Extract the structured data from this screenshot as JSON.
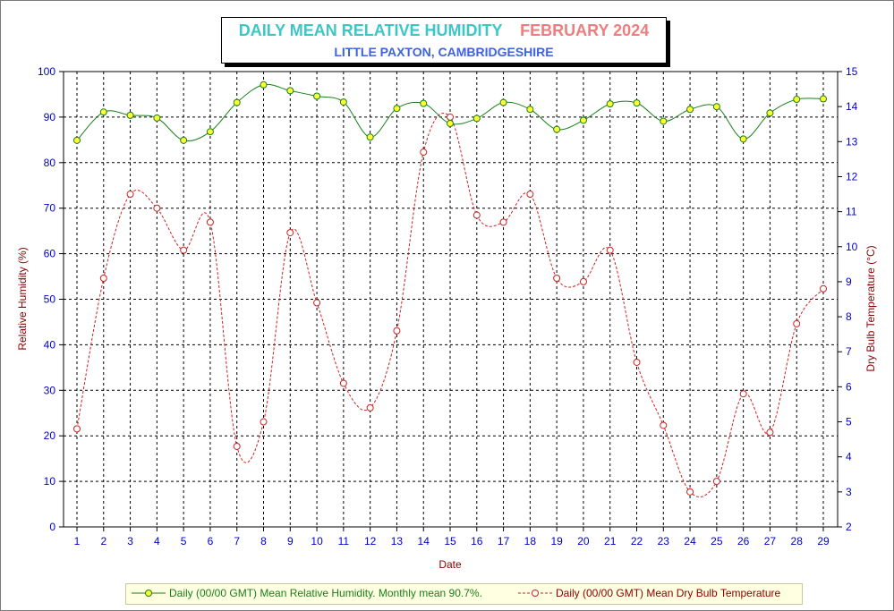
{
  "header": {
    "title_main": "DAILY MEAN RELATIVE HUMIDITY",
    "title_month": "FEBRUARY 2024",
    "subtitle": "LITTLE PAXTON, CAMBRIDGESHIRE"
  },
  "legend": {
    "humidity_label": "Daily (00/00 GMT) Mean Relative Humidity. Monthly mean 90.7%.",
    "temperature_label": "Daily (00/00 GMT) Mean Dry Bulb Temperature"
  },
  "colors": {
    "humidity_line": "#1a7f1a",
    "humidity_marker": "#ffff33",
    "temperature_line": "#cc2222",
    "axis_text": "#0000cc",
    "axis_title": "#8b0000"
  },
  "chart_data": {
    "type": "line",
    "xlabel": "Date",
    "ylabel": "Relative Humidity (%)",
    "y2label": "Dry Bulb Temperature (°C)",
    "x": [
      1,
      2,
      3,
      4,
      5,
      6,
      7,
      8,
      9,
      10,
      11,
      12,
      13,
      14,
      15,
      16,
      17,
      18,
      19,
      20,
      21,
      22,
      23,
      24,
      25,
      26,
      27,
      28,
      29
    ],
    "ylim": [
      0,
      100
    ],
    "y2lim": [
      2,
      15
    ],
    "yticks": [
      0,
      10,
      20,
      30,
      40,
      50,
      60,
      70,
      80,
      90,
      100
    ],
    "y2ticks": [
      2,
      3,
      4,
      5,
      6,
      7,
      8,
      9,
      10,
      11,
      12,
      13,
      14,
      15
    ],
    "grid": true,
    "legend_position": "bottom",
    "series": [
      {
        "name": "Daily (00/00 GMT) Mean Relative Humidity. Monthly mean 90.7%.",
        "axis": "left",
        "values": [
          84.9,
          91.1,
          90.4,
          89.8,
          84.9,
          86.8,
          93.2,
          97.1,
          95.8,
          94.6,
          93.3,
          85.6,
          91.9,
          93.0,
          88.6,
          89.7,
          93.2,
          91.7,
          87.3,
          89.3,
          92.9,
          93.1,
          89.1,
          91.7,
          92.3,
          85.2,
          90.9,
          93.9,
          94.0
        ]
      },
      {
        "name": "Daily (00/00 GMT) Mean Dry Bulb Temperature",
        "axis": "right",
        "values": [
          4.8,
          9.1,
          11.5,
          11.1,
          9.9,
          10.7,
          4.3,
          5.0,
          10.4,
          8.4,
          6.1,
          5.4,
          7.6,
          12.7,
          13.7,
          10.9,
          10.7,
          11.5,
          9.1,
          9.0,
          9.9,
          6.7,
          4.9,
          3.0,
          3.3,
          5.8,
          4.7,
          7.8,
          8.8
        ]
      }
    ]
  }
}
